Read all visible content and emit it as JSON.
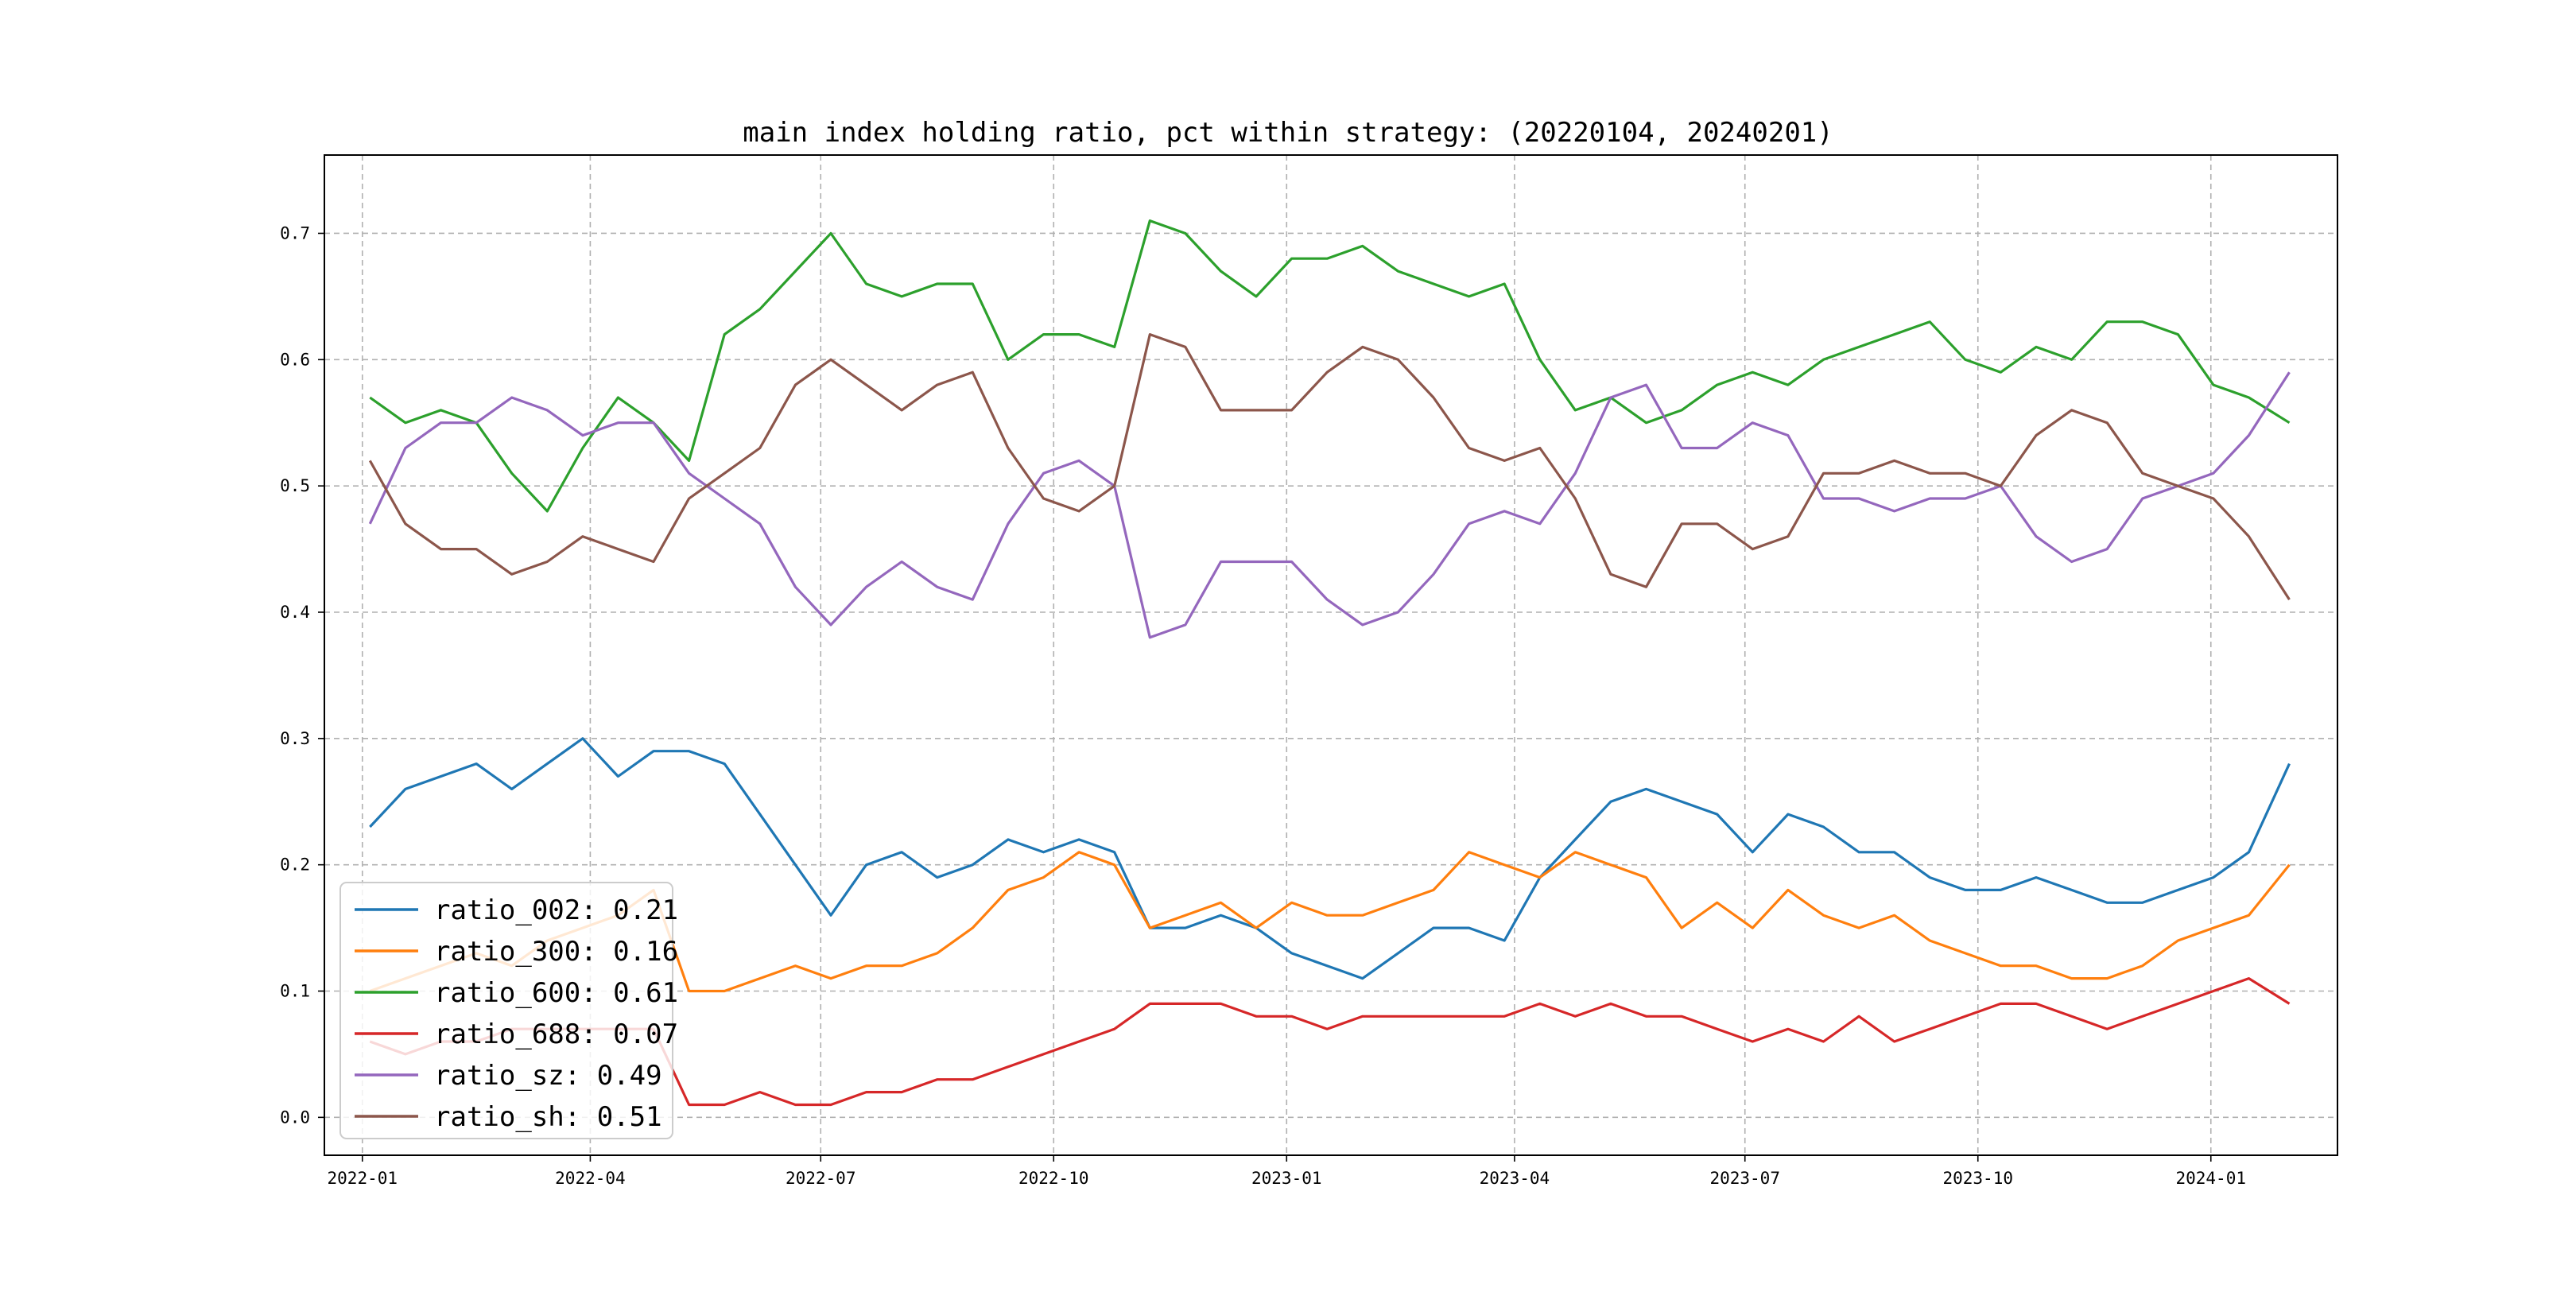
{
  "chart_data": {
    "type": "line",
    "title": "main index holding ratio, pct within strategy: (20220104, 20240201)",
    "xlabel": "",
    "ylabel": "",
    "x_range": [
      "2021-12-17",
      "2024-02-20"
    ],
    "ylim": [
      -0.03,
      0.762
    ],
    "grid": true,
    "grid_style": "dashed",
    "legend_position": "lower-left",
    "x_ticks": [
      {
        "date": "2022-01-01",
        "label": "2022-01"
      },
      {
        "date": "2022-04-01",
        "label": "2022-04"
      },
      {
        "date": "2022-07-01",
        "label": "2022-07"
      },
      {
        "date": "2022-10-01",
        "label": "2022-10"
      },
      {
        "date": "2023-01-01",
        "label": "2023-01"
      },
      {
        "date": "2023-04-01",
        "label": "2023-04"
      },
      {
        "date": "2023-07-01",
        "label": "2023-07"
      },
      {
        "date": "2023-10-01",
        "label": "2023-10"
      },
      {
        "date": "2024-01-01",
        "label": "2024-01"
      }
    ],
    "y_ticks": [
      {
        "value": 0.0,
        "label": "0.0"
      },
      {
        "value": 0.1,
        "label": "0.1"
      },
      {
        "value": 0.2,
        "label": "0.2"
      },
      {
        "value": 0.3,
        "label": "0.3"
      },
      {
        "value": 0.4,
        "label": "0.4"
      },
      {
        "value": 0.5,
        "label": "0.5"
      },
      {
        "value": 0.6,
        "label": "0.6"
      },
      {
        "value": 0.7,
        "label": "0.7"
      }
    ],
    "x": [
      "2022-01-04",
      "2022-01-18",
      "2022-02-01",
      "2022-02-15",
      "2022-03-01",
      "2022-03-15",
      "2022-03-29",
      "2022-04-12",
      "2022-04-26",
      "2022-05-10",
      "2022-05-24",
      "2022-06-07",
      "2022-06-21",
      "2022-07-05",
      "2022-07-19",
      "2022-08-02",
      "2022-08-16",
      "2022-08-30",
      "2022-09-13",
      "2022-09-27",
      "2022-10-11",
      "2022-10-25",
      "2022-11-08",
      "2022-11-22",
      "2022-12-06",
      "2022-12-20",
      "2023-01-03",
      "2023-01-17",
      "2023-01-31",
      "2023-02-14",
      "2023-02-28",
      "2023-03-14",
      "2023-03-28",
      "2023-04-11",
      "2023-04-25",
      "2023-05-09",
      "2023-05-23",
      "2023-06-06",
      "2023-06-20",
      "2023-07-04",
      "2023-07-18",
      "2023-08-01",
      "2023-08-15",
      "2023-08-29",
      "2023-09-12",
      "2023-09-26",
      "2023-10-10",
      "2023-10-24",
      "2023-11-07",
      "2023-11-21",
      "2023-12-05",
      "2023-12-19",
      "2024-01-02",
      "2024-01-16",
      "2024-02-01"
    ],
    "series": [
      {
        "name": "ratio_002",
        "color": "#1f77b4",
        "legend_label": "ratio_002: 0.21",
        "values": [
          0.23,
          0.26,
          0.27,
          0.28,
          0.26,
          0.28,
          0.3,
          0.27,
          0.29,
          0.29,
          0.28,
          0.24,
          0.2,
          0.16,
          0.2,
          0.21,
          0.19,
          0.2,
          0.22,
          0.21,
          0.22,
          0.21,
          0.15,
          0.15,
          0.16,
          0.15,
          0.13,
          0.12,
          0.11,
          0.13,
          0.15,
          0.15,
          0.14,
          0.19,
          0.22,
          0.25,
          0.26,
          0.25,
          0.24,
          0.21,
          0.24,
          0.23,
          0.21,
          0.21,
          0.19,
          0.18,
          0.18,
          0.19,
          0.18,
          0.17,
          0.17,
          0.18,
          0.19,
          0.21,
          0.28
        ]
      },
      {
        "name": "ratio_300",
        "color": "#ff7f0e",
        "legend_label": "ratio_300: 0.16",
        "values": [
          0.1,
          0.11,
          0.12,
          0.13,
          0.12,
          0.14,
          0.15,
          0.16,
          0.18,
          0.1,
          0.1,
          0.11,
          0.12,
          0.11,
          0.12,
          0.12,
          0.13,
          0.15,
          0.18,
          0.19,
          0.21,
          0.2,
          0.15,
          0.16,
          0.17,
          0.15,
          0.17,
          0.16,
          0.16,
          0.17,
          0.18,
          0.21,
          0.2,
          0.19,
          0.21,
          0.2,
          0.19,
          0.15,
          0.17,
          0.15,
          0.18,
          0.16,
          0.15,
          0.16,
          0.14,
          0.13,
          0.12,
          0.12,
          0.11,
          0.11,
          0.12,
          0.14,
          0.15,
          0.16,
          0.2
        ]
      },
      {
        "name": "ratio_600",
        "color": "#2ca02c",
        "legend_label": "ratio_600: 0.61",
        "values": [
          0.57,
          0.55,
          0.56,
          0.55,
          0.51,
          0.48,
          0.53,
          0.57,
          0.55,
          0.52,
          0.62,
          0.64,
          0.67,
          0.7,
          0.66,
          0.65,
          0.66,
          0.66,
          0.6,
          0.62,
          0.62,
          0.61,
          0.71,
          0.7,
          0.67,
          0.65,
          0.68,
          0.68,
          0.69,
          0.67,
          0.66,
          0.65,
          0.66,
          0.6,
          0.56,
          0.57,
          0.55,
          0.56,
          0.58,
          0.59,
          0.58,
          0.6,
          0.61,
          0.62,
          0.63,
          0.6,
          0.59,
          0.61,
          0.6,
          0.63,
          0.63,
          0.62,
          0.58,
          0.57,
          0.55
        ]
      },
      {
        "name": "ratio_688",
        "color": "#d62728",
        "legend_label": "ratio_688: 0.07",
        "values": [
          0.06,
          0.05,
          0.06,
          0.06,
          0.07,
          0.07,
          0.07,
          0.07,
          0.07,
          0.01,
          0.01,
          0.02,
          0.01,
          0.01,
          0.02,
          0.02,
          0.03,
          0.03,
          0.04,
          0.05,
          0.06,
          0.07,
          0.09,
          0.09,
          0.09,
          0.08,
          0.08,
          0.07,
          0.08,
          0.08,
          0.08,
          0.08,
          0.08,
          0.09,
          0.08,
          0.09,
          0.08,
          0.08,
          0.07,
          0.06,
          0.07,
          0.06,
          0.08,
          0.06,
          0.07,
          0.08,
          0.09,
          0.09,
          0.08,
          0.07,
          0.08,
          0.09,
          0.1,
          0.11,
          0.09
        ]
      },
      {
        "name": "ratio_sz",
        "color": "#9467bd",
        "legend_label": "ratio_sz: 0.49",
        "values": [
          0.47,
          0.53,
          0.55,
          0.55,
          0.57,
          0.56,
          0.54,
          0.55,
          0.55,
          0.51,
          0.49,
          0.47,
          0.42,
          0.39,
          0.42,
          0.44,
          0.42,
          0.41,
          0.47,
          0.51,
          0.52,
          0.5,
          0.38,
          0.39,
          0.44,
          0.44,
          0.44,
          0.41,
          0.39,
          0.4,
          0.43,
          0.47,
          0.48,
          0.47,
          0.51,
          0.57,
          0.58,
          0.53,
          0.53,
          0.55,
          0.54,
          0.49,
          0.49,
          0.48,
          0.49,
          0.49,
          0.5,
          0.46,
          0.44,
          0.45,
          0.49,
          0.5,
          0.51,
          0.54,
          0.59
        ]
      },
      {
        "name": "ratio_sh",
        "color": "#8c564b",
        "legend_label": "ratio_sh: 0.51",
        "values": [
          0.52,
          0.47,
          0.45,
          0.45,
          0.43,
          0.44,
          0.46,
          0.45,
          0.44,
          0.49,
          0.51,
          0.53,
          0.58,
          0.6,
          0.58,
          0.56,
          0.58,
          0.59,
          0.53,
          0.49,
          0.48,
          0.5,
          0.62,
          0.61,
          0.56,
          0.56,
          0.56,
          0.59,
          0.61,
          0.6,
          0.57,
          0.53,
          0.52,
          0.53,
          0.49,
          0.43,
          0.42,
          0.47,
          0.47,
          0.45,
          0.46,
          0.51,
          0.51,
          0.52,
          0.51,
          0.51,
          0.5,
          0.54,
          0.56,
          0.55,
          0.51,
          0.5,
          0.49,
          0.46,
          0.41
        ]
      }
    ]
  }
}
